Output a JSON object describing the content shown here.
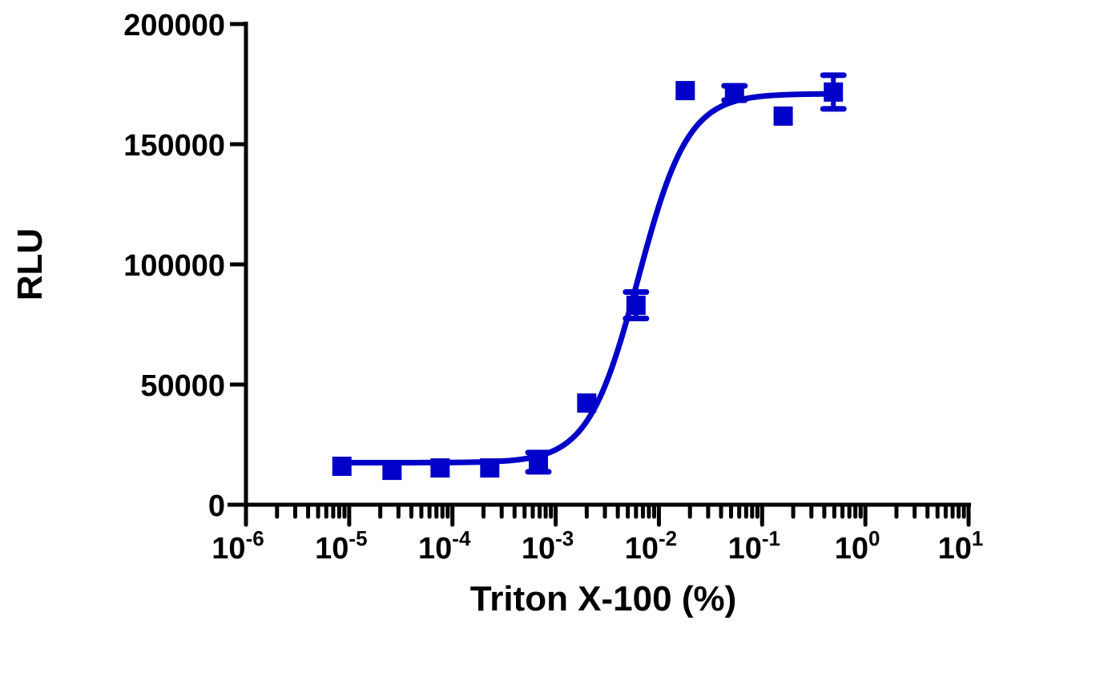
{
  "chart_data": {
    "type": "scatter",
    "title": "",
    "xlabel": "Triton X-100 (%)",
    "ylabel": "RLU",
    "xscale": "log",
    "xlim": [
      1e-06,
      10
    ],
    "ylim": [
      0,
      200000
    ],
    "x_ticks": [
      {
        "base": "10",
        "exp": "-6",
        "value": 1e-06
      },
      {
        "base": "10",
        "exp": "-5",
        "value": 1e-05
      },
      {
        "base": "10",
        "exp": "-4",
        "value": 0.0001
      },
      {
        "base": "10",
        "exp": "-3",
        "value": 0.001
      },
      {
        "base": "10",
        "exp": "-2",
        "value": 0.01
      },
      {
        "base": "10",
        "exp": "-1",
        "value": 0.1
      },
      {
        "base": "10",
        "exp": "0",
        "value": 1
      },
      {
        "base": "10",
        "exp": "1",
        "value": 10
      }
    ],
    "y_ticks": [
      {
        "label": "0",
        "value": 0
      },
      {
        "label": "50000",
        "value": 50000
      },
      {
        "label": "100000",
        "value": 100000
      },
      {
        "label": "150000",
        "value": 150000
      },
      {
        "label": "200000",
        "value": 200000
      }
    ],
    "grid": false,
    "legend": null,
    "series": [
      {
        "name": "Triton X-100",
        "color": "#0000c8",
        "marker": "square",
        "points": [
          {
            "x": 8.5e-06,
            "y": 16000,
            "err": 0
          },
          {
            "x": 2.6e-05,
            "y": 14300,
            "err": 0
          },
          {
            "x": 7.6e-05,
            "y": 15300,
            "err": 0
          },
          {
            "x": 0.00023,
            "y": 15300,
            "err": 0
          },
          {
            "x": 0.00068,
            "y": 17700,
            "err": 4000
          },
          {
            "x": 0.002,
            "y": 42300,
            "err": 0
          },
          {
            "x": 0.006,
            "y": 83000,
            "err": 5500
          },
          {
            "x": 0.018,
            "y": 172300,
            "err": 0
          },
          {
            "x": 0.054,
            "y": 171300,
            "err": 3000
          },
          {
            "x": 0.16,
            "y": 161700,
            "err": 0
          },
          {
            "x": 0.49,
            "y": 171700,
            "err": 7000
          }
        ]
      }
    ],
    "fit": {
      "type": "sigmoidal dose-response",
      "bottom": 17500,
      "top": 171000,
      "log_ec50": -2.2,
      "hill_slope": 1.8,
      "x_range": [
        8.5e-06,
        0.49
      ],
      "color": "#0000c8"
    }
  }
}
